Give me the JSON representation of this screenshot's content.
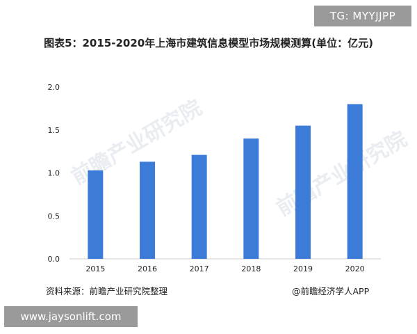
{
  "tg_badge": "TG: MYYJJPP",
  "url_badge": "www.jaysonlift.com",
  "title": "图表5：2015-2020年上海市建筑信息模型市场规模测算(单位：亿元)",
  "source_text": "资料来源：前瞻产业研究院整理",
  "attribution": "@前瞻经济学人APP",
  "watermark_text": "前瞻产业研究院",
  "colors": {
    "bar": "#3d7bd9",
    "axis": "#cccccc",
    "text": "#222222"
  },
  "chart_data": {
    "type": "bar",
    "title": "图表5：2015-2020年上海市建筑信息模型市场规模测算(单位：亿元)",
    "categories": [
      "2015",
      "2016",
      "2017",
      "2018",
      "2019",
      "2020"
    ],
    "values": [
      1.03,
      1.13,
      1.21,
      1.4,
      1.55,
      1.8
    ],
    "yticks": [
      "0.0",
      "0.5",
      "1.0",
      "1.5",
      "2.0"
    ],
    "ylim": [
      0,
      2.0
    ],
    "xlabel": "",
    "ylabel": "",
    "grid": false
  }
}
